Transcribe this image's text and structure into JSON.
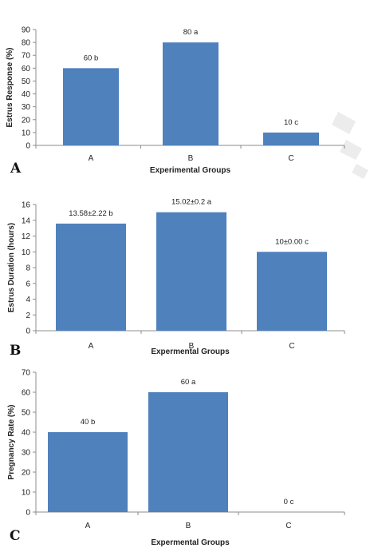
{
  "colors": {
    "bar": "#4f81bd",
    "axis": "#8c8c8c",
    "watermark": "#e6e6e6"
  },
  "top_fragment": "",
  "chart_data": [
    {
      "type": "bar",
      "panel": "A",
      "categories": [
        "A",
        "B",
        "C"
      ],
      "values": [
        60,
        80,
        10
      ],
      "data_labels": [
        "60 b",
        "80 a",
        "10 c"
      ],
      "ylabel": "Estrus Response (%)",
      "xlabel": "Experimental Groups",
      "ylim": [
        0,
        90
      ],
      "yticks": [
        0,
        10,
        20,
        30,
        40,
        50,
        60,
        70,
        80,
        90
      ],
      "grid": false
    },
    {
      "type": "bar",
      "panel": "B",
      "categories": [
        "A",
        "B",
        "C"
      ],
      "values": [
        13.58,
        15.02,
        10
      ],
      "data_labels": [
        "13.58±2.22 b",
        "15.02±0.2 a",
        "10±0.00 c"
      ],
      "ylabel": "Estrus Duration (hours)",
      "xlabel": "Expermental Groups",
      "ylim": [
        0,
        16
      ],
      "yticks": [
        0,
        2,
        4,
        6,
        8,
        10,
        12,
        14,
        16
      ],
      "grid": false
    },
    {
      "type": "bar",
      "panel": "C",
      "categories": [
        "A",
        "B",
        "C"
      ],
      "values": [
        40,
        60,
        0
      ],
      "data_labels": [
        "40 b",
        "60 a",
        "0 c"
      ],
      "ylabel": "Pregnancy Rate (%)",
      "xlabel": "Expermental Groups",
      "ylim": [
        0,
        70
      ],
      "yticks": [
        0,
        10,
        20,
        30,
        40,
        50,
        60,
        70
      ],
      "grid": false
    }
  ]
}
